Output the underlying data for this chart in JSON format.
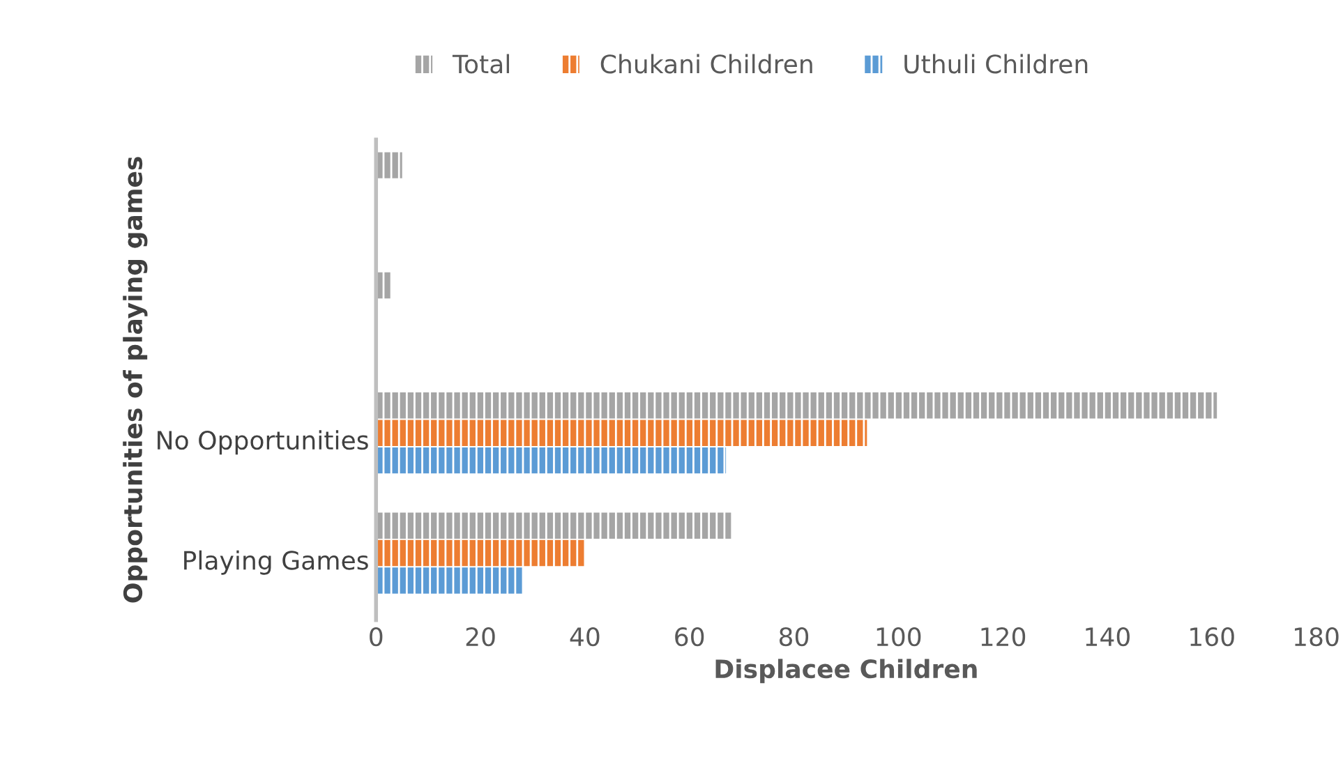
{
  "chart_data": {
    "type": "bar",
    "orientation": "horizontal",
    "xlabel": "Displacee Children",
    "ylabel": "Opportunities of playing games",
    "categories": [
      null,
      null,
      "No Opportunities",
      "Playing Games"
    ],
    "series": [
      {
        "name": "Total",
        "color": "#a5a5a5",
        "values": [
          5,
          3,
          161,
          68
        ]
      },
      {
        "name": "Chukani Children",
        "color": "#ed7d31",
        "values": [
          null,
          null,
          94,
          40
        ]
      },
      {
        "name": "Uthuli Children",
        "color": "#5b9bd5",
        "values": [
          null,
          null,
          67,
          28
        ]
      }
    ],
    "xlim": [
      0,
      180
    ],
    "xticks": [
      0,
      20,
      40,
      60,
      80,
      100,
      120,
      140,
      160,
      180
    ],
    "grid": false,
    "legend": "top"
  }
}
